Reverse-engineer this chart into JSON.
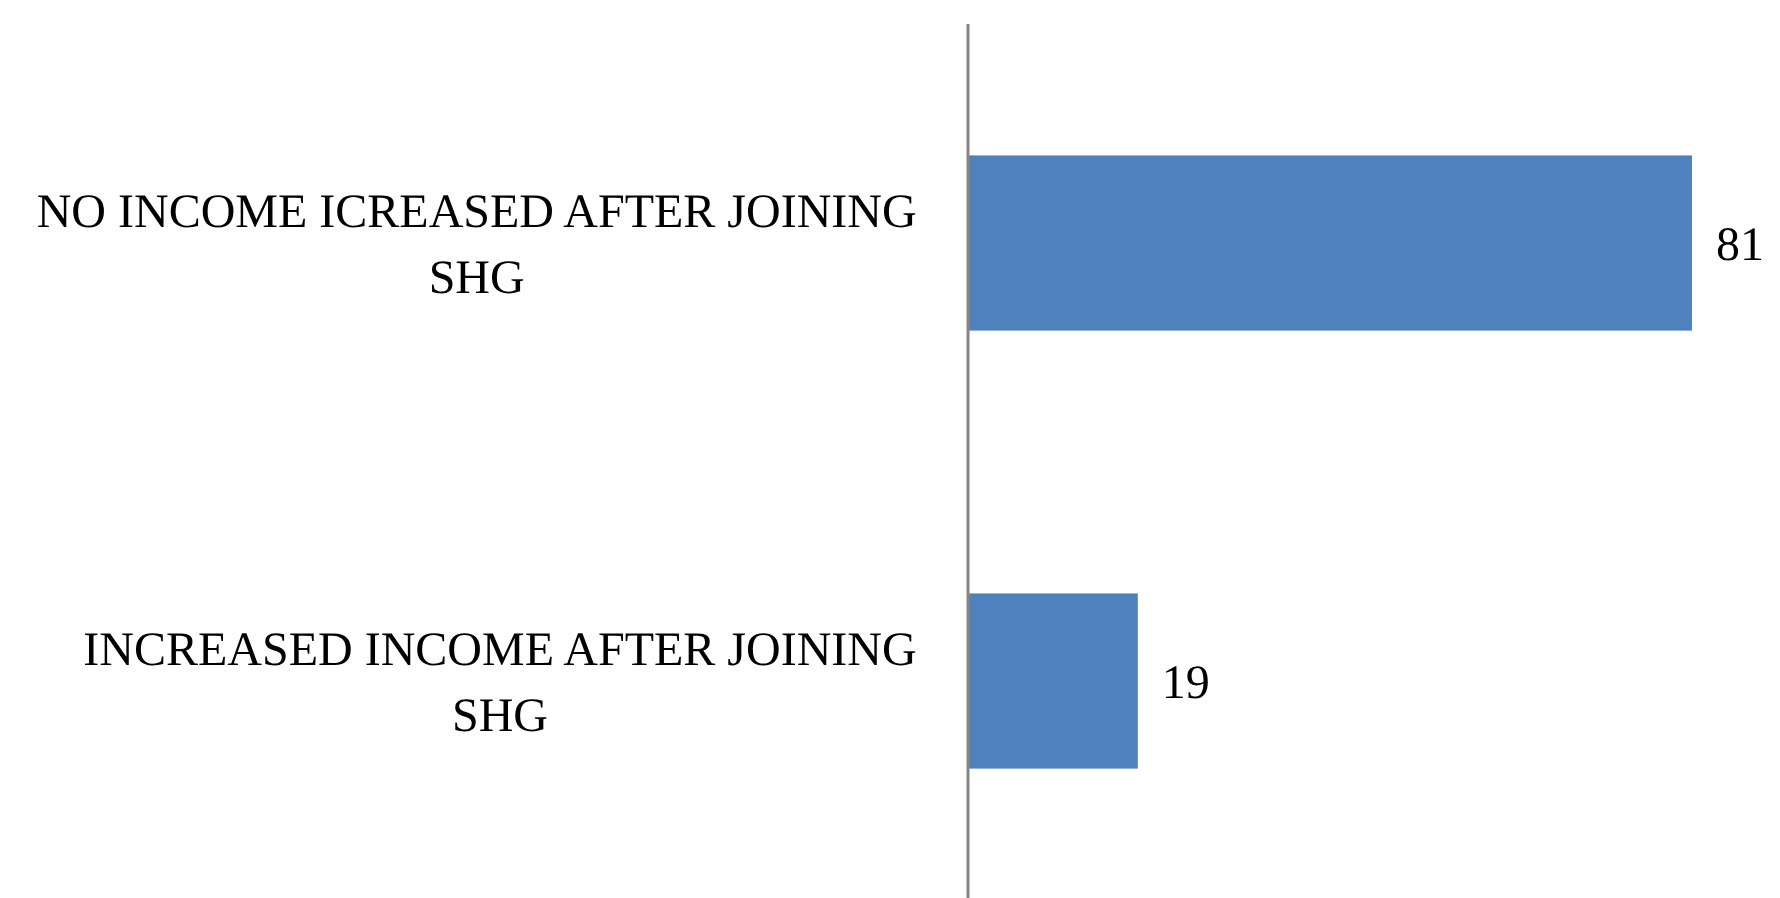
{
  "chart_data": {
    "type": "bar",
    "orientation": "horizontal",
    "categories": [
      "NO INCOME ICREASED AFTER JOINING SHG",
      "INCREASED INCOME AFTER JOINING SHG"
    ],
    "values": [
      81,
      19
    ],
    "color": "#4f81bd",
    "data_labels": true,
    "tick_labels": "y"
  }
}
